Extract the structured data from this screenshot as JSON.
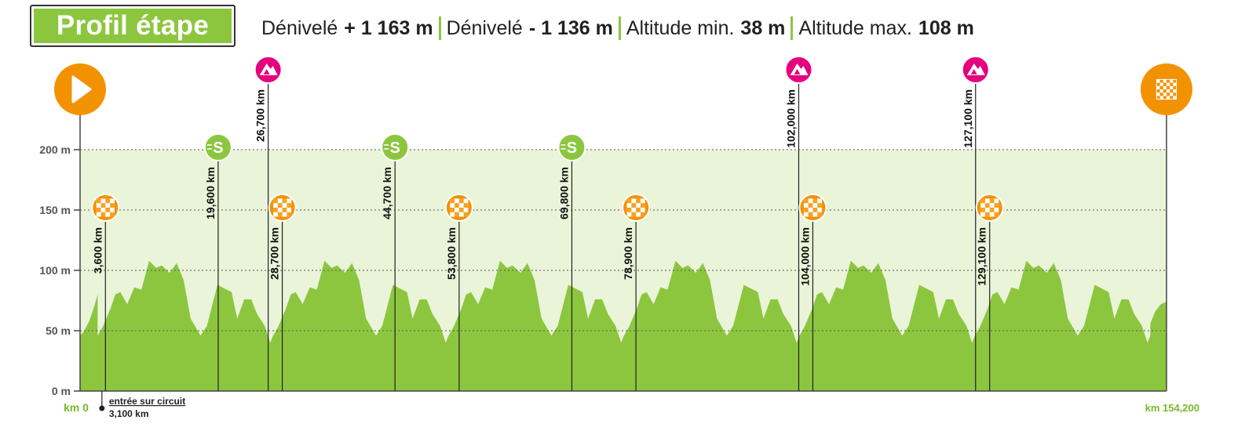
{
  "header": {
    "title": "Profil étape",
    "stats": [
      {
        "label": "Dénivelé",
        "value": "+ 1 163 m"
      },
      {
        "label": "Dénivelé",
        "value": "- 1 136 m"
      },
      {
        "label": "Altitude min.",
        "value": "38 m"
      },
      {
        "label": "Altitude max.",
        "value": "108 m"
      }
    ]
  },
  "colors": {
    "terrain": "#8cc63f",
    "band": "#eaf4d9",
    "sprint": "#8cc63f",
    "climb": "#e6007e",
    "checkpoint": "#f39200",
    "axis": "#444444",
    "distance_green": "#7ab829"
  },
  "chart_data": {
    "type": "area",
    "xlim": [
      0,
      154.2
    ],
    "ylim": [
      0,
      200
    ],
    "ylabel": "",
    "xlabel": "",
    "y_ticks": [
      {
        "value": 0,
        "label": "0 m"
      },
      {
        "value": 50,
        "label": "50 m"
      },
      {
        "value": 100,
        "label": "100 m"
      },
      {
        "value": 150,
        "label": "150 m"
      },
      {
        "value": 200,
        "label": "200 m"
      }
    ],
    "x_start_label": "km 0",
    "x_end_label": "km 154,200",
    "circuit_entry": {
      "km": 3.1,
      "label_line1": "entrée sur circuit",
      "label_line2": "3,100 km"
    },
    "lap_km": 24.9,
    "lap_offset_km": 2.5,
    "lap_count": 6,
    "lap_profile": {
      "x": [
        0,
        0.7,
        1.8,
        2.5,
        3.2,
        4.2,
        5.2,
        6.2,
        7.3,
        8.3,
        9.1,
        10.2,
        11.2,
        12.2,
        13.2,
        14.6,
        15.5,
        17.0,
        19.0,
        19.8,
        20.8,
        21.8,
        22.6,
        23.7,
        24.5,
        24.9
      ],
      "y": [
        46,
        53,
        68,
        80,
        82,
        72,
        86,
        84,
        108,
        102,
        104,
        98,
        106,
        92,
        60,
        46,
        54,
        88,
        82,
        60,
        76,
        76,
        64,
        54,
        40,
        46
      ]
    },
    "route_edges": {
      "start_x": [
        0,
        0.5,
        1.3,
        2.0,
        2.5
      ],
      "start_y": [
        46,
        49,
        58,
        70,
        80
      ],
      "end_x": [
        151.9,
        152.6,
        153.4,
        154.2
      ],
      "end_y": [
        56,
        66,
        72,
        74
      ]
    },
    "start_marker": {
      "km": 0,
      "icon": "start-play-icon"
    },
    "finish_marker": {
      "km": 154.2,
      "icon": "finish-flag-icon"
    },
    "points": [
      {
        "km": 3.6,
        "label": "3,600 km",
        "type": "checkpoint",
        "icon": "checkered-flag-icon"
      },
      {
        "km": 19.6,
        "label": "19,600 km",
        "type": "sprint",
        "icon": "sprint-s-icon"
      },
      {
        "km": 26.7,
        "label": "26,700 km",
        "type": "climb",
        "icon": "mountain-icon"
      },
      {
        "km": 28.7,
        "label": "28,700 km",
        "type": "checkpoint",
        "icon": "checkered-flag-icon"
      },
      {
        "km": 44.7,
        "label": "44,700 km",
        "type": "sprint",
        "icon": "sprint-s-icon"
      },
      {
        "km": 53.8,
        "label": "53,800 km",
        "type": "checkpoint",
        "icon": "checkered-flag-icon"
      },
      {
        "km": 69.8,
        "label": "69,800 km",
        "type": "sprint",
        "icon": "sprint-s-icon"
      },
      {
        "km": 78.9,
        "label": "78,900 km",
        "type": "checkpoint",
        "icon": "checkered-flag-icon"
      },
      {
        "km": 102.0,
        "label": "102,000 km",
        "type": "climb",
        "icon": "mountain-icon"
      },
      {
        "km": 104.0,
        "label": "104,000 km",
        "type": "checkpoint",
        "icon": "checkered-flag-icon"
      },
      {
        "km": 127.1,
        "label": "127,100 km",
        "type": "climb",
        "icon": "mountain-icon"
      },
      {
        "km": 129.1,
        "label": "129,100 km",
        "type": "checkpoint",
        "icon": "checkered-flag-icon"
      }
    ]
  }
}
